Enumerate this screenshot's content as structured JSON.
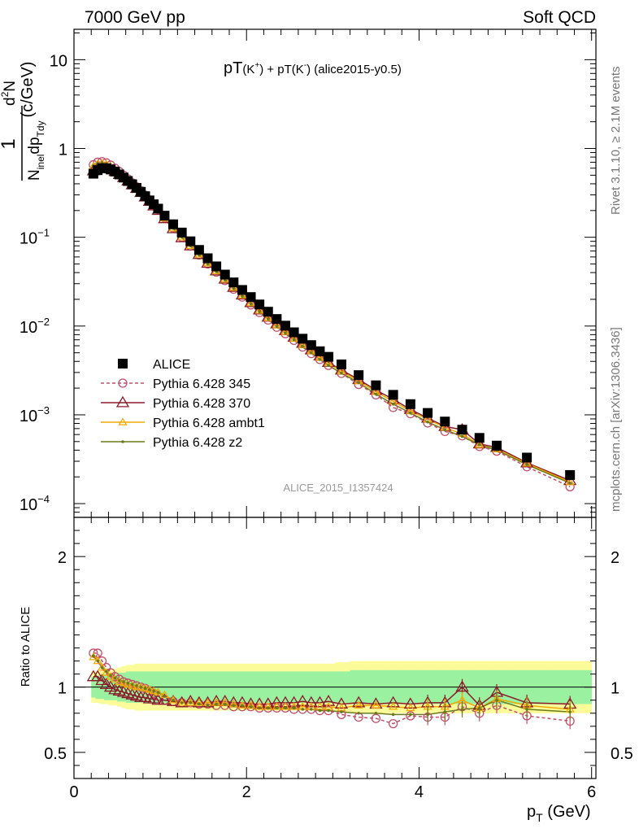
{
  "header": {
    "left": "7000 GeV pp",
    "right": "Soft QCD"
  },
  "side": {
    "rivet": "Rivet 3.1.10, ≥ 2.1M events",
    "mcplots": "mcplots.cern.ch [arXiv:1306.3436]"
  },
  "watermark": "ALICE_2015_I1357424",
  "chart_data": [
    {
      "type": "scatter",
      "title_main": "pT",
      "title_k1": "(K",
      "title_k1_sup": "+",
      "title_k1_close": ")",
      "title_plus": " + pT(K",
      "title_k2_sup": "-",
      "title_k2_close": ")",
      "title_tail": " (alice2015-y0.5)",
      "ylabel": {
        "num": "1",
        "frac_top_main": "d",
        "frac_top_sup": "2",
        "frac_top_tail": "N",
        "bot_main": "N",
        "bot_sub": "inel",
        "bot_mid": "dp",
        "bot_sub2": "T",
        "bot_sub3": "dy",
        "units": "(c/GeV)"
      },
      "xlabel": {
        "main": "p",
        "sub": "T",
        "units": " (GeV)"
      },
      "xlim": [
        0,
        6.05
      ],
      "ylog": true,
      "ylim": [
        7e-05,
        22
      ],
      "xticks": [
        "0",
        "2",
        "4",
        "6"
      ],
      "yticks": [
        {
          "v": 10,
          "base": "10",
          "exp": ""
        },
        {
          "v": 1,
          "base": "1",
          "exp": ""
        },
        {
          "v": 0.1,
          "base": "10",
          "exp": "−1"
        },
        {
          "v": 0.01,
          "base": "10",
          "exp": "−2"
        },
        {
          "v": 0.001,
          "base": "10",
          "exp": "−3"
        },
        {
          "v": 0.0001,
          "base": "10",
          "exp": "−4"
        }
      ],
      "x": [
        0.225,
        0.275,
        0.325,
        0.375,
        0.425,
        0.475,
        0.525,
        0.575,
        0.625,
        0.675,
        0.725,
        0.775,
        0.825,
        0.875,
        0.925,
        0.975,
        1.05,
        1.15,
        1.25,
        1.35,
        1.45,
        1.55,
        1.65,
        1.75,
        1.85,
        1.95,
        2.05,
        2.15,
        2.25,
        2.35,
        2.45,
        2.55,
        2.65,
        2.75,
        2.85,
        2.95,
        3.1,
        3.3,
        3.5,
        3.7,
        3.9,
        4.1,
        4.3,
        4.5,
        4.7,
        4.9,
        5.25,
        5.75
      ],
      "series": [
        {
          "name": "ALICE",
          "color": "#000000",
          "marker": "square",
          "values": [
            0.52,
            0.57,
            0.6,
            0.6,
            0.58,
            0.55,
            0.51,
            0.47,
            0.43,
            0.395,
            0.36,
            0.325,
            0.29,
            0.26,
            0.235,
            0.21,
            0.175,
            0.14,
            0.113,
            0.09,
            0.072,
            0.058,
            0.047,
            0.038,
            0.031,
            0.0255,
            0.0212,
            0.0175,
            0.0145,
            0.012,
            0.0101,
            0.0085,
            0.0072,
            0.0061,
            0.0052,
            0.0045,
            0.0037,
            0.0028,
            0.00215,
            0.00168,
            0.00132,
            0.00105,
            0.00084,
            0.00068,
            0.00055,
            0.00045,
            0.00033,
            0.00021
          ]
        },
        {
          "name": "Pythia 6.428 345",
          "color": "#c0506a",
          "marker": "circle-open",
          "dash": "4,3",
          "values": [
            0.655,
            0.7,
            0.71,
            0.69,
            0.65,
            0.6,
            0.55,
            0.5,
            0.455,
            0.41,
            0.37,
            0.335,
            0.298,
            0.263,
            0.233,
            0.206,
            0.165,
            0.127,
            0.1,
            0.08,
            0.063,
            0.05,
            0.0405,
            0.0325,
            0.026,
            0.0212,
            0.0173,
            0.0142,
            0.0117,
            0.0097,
            0.0082,
            0.0069,
            0.0058,
            0.0049,
            0.0042,
            0.0036,
            0.00293,
            0.0022,
            0.00168,
            0.00121,
            0.00103,
            0.00081,
            0.00065,
            0.00058,
            0.00044,
            0.00039,
            0.00026,
            0.000155
          ]
        },
        {
          "name": "Pythia 6.428 370",
          "color": "#8b1a2a",
          "marker": "triangle-open",
          "dash": "",
          "values": [
            0.56,
            0.61,
            0.63,
            0.62,
            0.59,
            0.55,
            0.51,
            0.47,
            0.43,
            0.39,
            0.355,
            0.32,
            0.285,
            0.254,
            0.226,
            0.201,
            0.162,
            0.125,
            0.099,
            0.08,
            0.064,
            0.051,
            0.0418,
            0.0338,
            0.0273,
            0.0224,
            0.0184,
            0.0152,
            0.0126,
            0.0106,
            0.0089,
            0.0075,
            0.0064,
            0.0054,
            0.0046,
            0.0039,
            0.0032,
            0.0025,
            0.0019,
            0.0015,
            0.00115,
            0.00092,
            0.00074,
            0.00068,
            0.00047,
            0.00043,
            0.000288,
            0.000182
          ]
        },
        {
          "name": "Pythia 6.428 ambt1",
          "color": "#f0a800",
          "marker": "triangle-open-small",
          "dash": "",
          "values": [
            0.63,
            0.67,
            0.68,
            0.66,
            0.63,
            0.59,
            0.54,
            0.49,
            0.445,
            0.402,
            0.362,
            0.327,
            0.29,
            0.258,
            0.229,
            0.203,
            0.163,
            0.126,
            0.1,
            0.08,
            0.064,
            0.051,
            0.0415,
            0.0335,
            0.027,
            0.0221,
            0.0181,
            0.0149,
            0.0123,
            0.0102,
            0.0086,
            0.0072,
            0.0061,
            0.0052,
            0.0044,
            0.0038,
            0.0031,
            0.0024,
            0.00182,
            0.00142,
            0.0011,
            0.00089,
            0.00072,
            0.00061,
            0.00046,
            0.00041,
            0.000283,
            0.000175
          ]
        },
        {
          "name": "Pythia 6.428 z2",
          "color": "#6b7a1a",
          "marker": "dot",
          "dash": "",
          "values": [
            0.64,
            0.68,
            0.69,
            0.67,
            0.64,
            0.6,
            0.55,
            0.5,
            0.45,
            0.405,
            0.365,
            0.33,
            0.293,
            0.26,
            0.23,
            0.204,
            0.163,
            0.126,
            0.1,
            0.08,
            0.063,
            0.05,
            0.041,
            0.033,
            0.0265,
            0.0216,
            0.0177,
            0.0145,
            0.012,
            0.0099,
            0.0083,
            0.007,
            0.0059,
            0.005,
            0.0042,
            0.0036,
            0.00295,
            0.0023,
            0.00171,
            0.00132,
            0.00105,
            0.00083,
            0.00068,
            0.00057,
            0.00046,
            0.0004,
            0.000275,
            0.00017
          ]
        }
      ]
    },
    {
      "type": "line",
      "ylabel": "Ratio to ALICE",
      "ylim": [
        0.3,
        2.3
      ],
      "yticks": [
        "2",
        "1",
        "0.5"
      ],
      "ytick_values": [
        2,
        1,
        0.5
      ],
      "band_inner_color": "#9af2a0",
      "band_outer_color": "#fbfb9a",
      "band_outer": [
        0.12,
        0.12,
        0.13,
        0.13,
        0.14,
        0.14,
        0.15,
        0.16,
        0.17,
        0.17,
        0.18,
        0.18,
        0.18,
        0.18,
        0.18,
        0.18,
        0.18,
        0.18,
        0.18,
        0.18,
        0.18,
        0.18,
        0.18,
        0.18,
        0.18,
        0.18,
        0.18,
        0.18,
        0.18,
        0.18,
        0.18,
        0.18,
        0.18,
        0.18,
        0.18,
        0.18,
        0.19,
        0.2,
        0.2,
        0.2,
        0.2,
        0.2,
        0.2,
        0.2,
        0.2,
        0.2,
        0.2,
        0.2
      ],
      "band_inner": [
        0.08,
        0.09,
        0.09,
        0.1,
        0.1,
        0.1,
        0.11,
        0.11,
        0.12,
        0.12,
        0.12,
        0.12,
        0.12,
        0.12,
        0.12,
        0.12,
        0.12,
        0.12,
        0.12,
        0.12,
        0.12,
        0.12,
        0.12,
        0.12,
        0.12,
        0.12,
        0.12,
        0.12,
        0.12,
        0.12,
        0.12,
        0.12,
        0.12,
        0.12,
        0.12,
        0.12,
        0.12,
        0.13,
        0.13,
        0.13,
        0.13,
        0.13,
        0.13,
        0.13,
        0.13,
        0.13,
        0.13,
        0.13
      ],
      "series": [
        {
          "name": "Pythia 6.428 345",
          "values": [
            1.26,
            1.26,
            1.2,
            1.15,
            1.11,
            1.08,
            1.06,
            1.04,
            1.03,
            1.02,
            1.01,
            1.0,
            0.99,
            0.97,
            0.95,
            0.93,
            0.9,
            0.89,
            0.88,
            0.88,
            0.87,
            0.87,
            0.86,
            0.86,
            0.85,
            0.85,
            0.85,
            0.84,
            0.84,
            0.84,
            0.84,
            0.83,
            0.83,
            0.83,
            0.82,
            0.82,
            0.79,
            0.77,
            0.76,
            0.72,
            0.78,
            0.77,
            0.77,
            0.85,
            0.8,
            0.86,
            0.78,
            0.74
          ]
        },
        {
          "name": "Pythia 6.428 370",
          "values": [
            1.08,
            1.08,
            1.05,
            1.02,
            1.0,
            0.98,
            0.97,
            0.96,
            0.95,
            0.94,
            0.93,
            0.92,
            0.92,
            0.91,
            0.91,
            0.9,
            0.9,
            0.89,
            0.88,
            0.89,
            0.88,
            0.88,
            0.89,
            0.89,
            0.88,
            0.88,
            0.87,
            0.87,
            0.87,
            0.88,
            0.88,
            0.88,
            0.89,
            0.88,
            0.88,
            0.89,
            0.87,
            0.88,
            0.87,
            0.88,
            0.87,
            0.88,
            0.88,
            1.0,
            0.86,
            0.96,
            0.88,
            0.87
          ]
        },
        {
          "name": "Pythia 6.428 ambt1",
          "values": [
            1.23,
            1.2,
            1.15,
            1.11,
            1.08,
            1.06,
            1.04,
            1.03,
            1.02,
            1.01,
            1.0,
            1.0,
            0.99,
            0.98,
            0.97,
            0.96,
            0.94,
            0.9,
            0.88,
            0.88,
            0.88,
            0.88,
            0.88,
            0.88,
            0.87,
            0.86,
            0.86,
            0.85,
            0.85,
            0.85,
            0.85,
            0.85,
            0.85,
            0.85,
            0.85,
            0.85,
            0.84,
            0.86,
            0.86,
            0.85,
            0.84,
            0.85,
            0.85,
            0.9,
            0.84,
            0.91,
            0.86,
            0.83
          ]
        },
        {
          "name": "Pythia 6.428 z2",
          "values": [
            1.24,
            1.2,
            1.15,
            1.12,
            1.09,
            1.07,
            1.05,
            1.04,
            1.03,
            1.02,
            1.01,
            1.0,
            0.99,
            0.98,
            0.97,
            0.96,
            0.93,
            0.9,
            0.88,
            0.88,
            0.87,
            0.86,
            0.87,
            0.87,
            0.86,
            0.86,
            0.85,
            0.84,
            0.84,
            0.84,
            0.84,
            0.84,
            0.83,
            0.83,
            0.82,
            0.82,
            0.81,
            0.8,
            0.8,
            0.79,
            0.79,
            0.79,
            0.81,
            0.83,
            0.84,
            0.9,
            0.83,
            0.81
          ]
        }
      ]
    }
  ]
}
